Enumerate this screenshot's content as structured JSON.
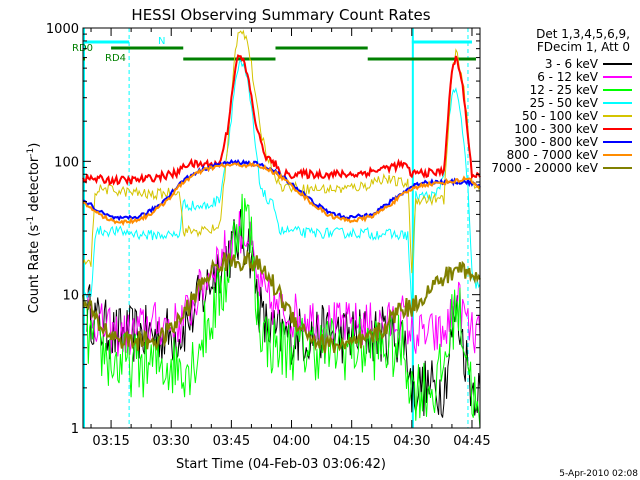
{
  "chart_data": {
    "type": "line",
    "title": "HESSI Observing Summary Count Rates",
    "xlabel": "Start Time (04-Feb-03 03:06:42)",
    "ylabel_main": "Count Rate (s",
    "ylabel_sup1": "-1",
    "ylabel_mid": " detector",
    "ylabel_sup2": "-1",
    "ylabel_end": ")",
    "yscale": "log",
    "ylim": [
      1,
      1000
    ],
    "xlim_minutes": [
      188,
      287
    ],
    "x_ticks": [
      {
        "t": 195,
        "label": "03:15"
      },
      {
        "t": 210,
        "label": "03:30"
      },
      {
        "t": 225,
        "label": "03:45"
      },
      {
        "t": 240,
        "label": "04:00"
      },
      {
        "t": 255,
        "label": "04:15"
      },
      {
        "t": 270,
        "label": "04:30"
      },
      {
        "t": 285,
        "label": "04:45"
      }
    ],
    "y_ticks": [
      {
        "v": 1,
        "label": "1"
      },
      {
        "v": 10,
        "label": "10"
      },
      {
        "v": 100,
        "label": "100"
      },
      {
        "v": 1000,
        "label": "1000"
      }
    ],
    "legend_header": [
      "Det 1,3,4,5,6,9,",
      "FDecim 1, Att 0"
    ],
    "timestamp": "5-Apr-2010 02:08",
    "night_bars": [
      [
        188,
        188.5
      ],
      [
        270,
        270.5
      ]
    ],
    "saa_lines": [
      199.5,
      284
    ],
    "flags": [
      {
        "label": "RD0",
        "color": "#008000",
        "segments": [
          [
            195,
            213
          ],
          [
            236,
            259
          ]
        ]
      },
      {
        "label": "RD4",
        "color": "#008000",
        "segments": [
          [
            188,
            188.5
          ],
          [
            213,
            236
          ],
          [
            259,
            286
          ]
        ]
      },
      {
        "label": "N",
        "color": "#00ffff",
        "segments": [
          [
            188,
            199.5
          ],
          [
            270,
            285
          ]
        ]
      }
    ],
    "series": [
      {
        "name": "3 - 6 keV",
        "color": "#000000",
        "x": [
          189,
          192,
          196,
          200,
          204,
          208,
          212,
          215,
          218,
          221,
          224,
          227,
          229,
          230,
          231,
          233,
          236,
          240,
          244,
          248,
          252,
          256,
          260,
          264,
          268,
          270,
          273,
          276,
          278,
          280,
          281,
          283,
          285,
          287
        ],
        "y": [
          8,
          6,
          5,
          5,
          5,
          5,
          5,
          7,
          10,
          15,
          20,
          27,
          25,
          20,
          12,
          6,
          5,
          5,
          5,
          5,
          5,
          5,
          5,
          5,
          5,
          2,
          2,
          2,
          2,
          5,
          8,
          4,
          2,
          2
        ]
      },
      {
        "name": "6 - 12 keV",
        "color": "#ff00ff",
        "x": [
          189,
          192,
          196,
          200,
          204,
          208,
          212,
          215,
          218,
          221,
          224,
          227,
          229,
          230,
          231,
          233,
          236,
          240,
          244,
          248,
          252,
          256,
          260,
          264,
          268,
          270,
          273,
          276,
          278,
          280,
          281,
          283,
          285,
          287
        ],
        "y": [
          8,
          6,
          5,
          5,
          6,
          6,
          6,
          8,
          12,
          18,
          22,
          30,
          28,
          22,
          14,
          10,
          8,
          7,
          7,
          6,
          6,
          6,
          6,
          6,
          7,
          5,
          5,
          5,
          5,
          7,
          10,
          7,
          5,
          5
        ]
      },
      {
        "name": "12 - 25 keV",
        "color": "#00ff00",
        "x": [
          189,
          192,
          196,
          200,
          204,
          208,
          212,
          215,
          218,
          221,
          224,
          227,
          229,
          230,
          231,
          233,
          236,
          240,
          244,
          248,
          252,
          256,
          260,
          264,
          268,
          270,
          273,
          276,
          278,
          280,
          281,
          283,
          285,
          287
        ],
        "y": [
          5,
          4,
          3,
          3,
          3,
          3,
          3,
          3,
          5,
          8,
          14,
          40,
          38,
          25,
          10,
          5,
          4,
          4,
          4,
          4,
          4,
          4,
          4,
          4,
          4,
          2,
          2,
          2,
          3,
          6,
          9,
          5,
          2,
          1
        ]
      },
      {
        "name": "25 - 50 keV",
        "color": "#00ffff",
        "x": [
          188,
          189,
          190,
          191,
          192,
          196,
          200,
          204,
          208,
          210,
          211,
          212,
          213,
          216,
          219,
          222,
          224,
          226,
          227,
          228,
          229,
          230,
          231,
          232,
          234,
          236,
          237,
          240,
          244,
          248,
          252,
          256,
          259,
          260,
          262,
          266,
          269,
          270,
          271,
          273,
          276,
          278,
          279,
          280,
          281,
          282,
          283,
          284,
          285,
          286,
          287
        ],
        "y": [
          10,
          10,
          10,
          28,
          30,
          30,
          29,
          28,
          28,
          28,
          28,
          28,
          48,
          46,
          46,
          52,
          120,
          400,
          540,
          500,
          400,
          250,
          130,
          70,
          50,
          45,
          30,
          30,
          29,
          29,
          29,
          29,
          29,
          28,
          29,
          28,
          28,
          8,
          55,
          55,
          55,
          80,
          200,
          300,
          340,
          240,
          140,
          60,
          14,
          12,
          12
        ]
      },
      {
        "name": "50 - 100 keV",
        "color": "#d4c400",
        "x": [
          188,
          189,
          190,
          191,
          193,
          197,
          201,
          205,
          209,
          212,
          213,
          216,
          219,
          222,
          224,
          226,
          227,
          228,
          229,
          230,
          231,
          232,
          233,
          234,
          236,
          237,
          240,
          244,
          248,
          252,
          256,
          259,
          260,
          263,
          266,
          269,
          270,
          271,
          273,
          276,
          278,
          279,
          280,
          281,
          282,
          283,
          284,
          285,
          286,
          287
        ],
        "y": [
          17,
          17,
          17,
          60,
          62,
          60,
          58,
          56,
          58,
          62,
          30,
          30,
          30,
          32,
          120,
          700,
          1000,
          950,
          800,
          520,
          300,
          190,
          140,
          110,
          80,
          65,
          64,
          62,
          62,
          62,
          64,
          66,
          70,
          75,
          70,
          68,
          15,
          52,
          52,
          52,
          52,
          150,
          450,
          650,
          520,
          350,
          170,
          70,
          66,
          66
        ]
      },
      {
        "name": "100 - 300 keV",
        "color": "#ff0000",
        "x": [
          188,
          190,
          193,
          196,
          200,
          204,
          208,
          212,
          213,
          216,
          219,
          222,
          224,
          226,
          227,
          228,
          229,
          230,
          231,
          232,
          233,
          234,
          236,
          237,
          240,
          244,
          248,
          252,
          256,
          260,
          264,
          268,
          270,
          271,
          273,
          276,
          278,
          279,
          280,
          281,
          282,
          283,
          284,
          285,
          286,
          287
        ],
        "y": [
          75,
          74,
          73,
          72,
          72,
          74,
          78,
          82,
          95,
          95,
          95,
          95,
          170,
          520,
          620,
          560,
          450,
          300,
          200,
          150,
          120,
          105,
          95,
          80,
          80,
          80,
          80,
          80,
          80,
          84,
          90,
          95,
          80,
          82,
          82,
          82,
          85,
          210,
          480,
          600,
          480,
          300,
          160,
          80,
          76,
          76
        ]
      },
      {
        "name": "300 - 800 keV",
        "color": "#0000ff",
        "x": [
          188,
          190,
          192,
          195,
          198,
          201,
          204,
          207,
          210,
          213,
          216,
          219,
          222,
          225,
          228,
          231,
          234,
          237,
          240,
          243,
          246,
          249,
          252,
          255,
          258,
          261,
          264,
          267,
          270,
          273,
          276,
          279,
          282,
          284,
          285,
          286,
          287
        ],
        "y": [
          50,
          47,
          42,
          38,
          37,
          38,
          41,
          47,
          58,
          72,
          82,
          90,
          95,
          98,
          98,
          96,
          90,
          80,
          68,
          57,
          48,
          42,
          39,
          38,
          39,
          42,
          48,
          56,
          65,
          70,
          70,
          70,
          70,
          70,
          69,
          66,
          64
        ]
      },
      {
        "name": "800 - 7000 keV",
        "color": "#ff8c00",
        "x": [
          188,
          190,
          192,
          195,
          198,
          201,
          204,
          207,
          210,
          213,
          216,
          219,
          222,
          225,
          228,
          231,
          234,
          237,
          240,
          243,
          246,
          249,
          252,
          255,
          258,
          261,
          264,
          267,
          270,
          273,
          276,
          279,
          282,
          284,
          285,
          286,
          287
        ],
        "y": [
          48,
          45,
          40,
          36,
          35,
          36,
          39,
          45,
          55,
          70,
          80,
          88,
          92,
          94,
          94,
          93,
          88,
          78,
          66,
          55,
          46,
          40,
          37,
          36,
          37,
          40,
          46,
          54,
          62,
          67,
          68,
          70,
          72,
          75,
          72,
          65,
          63
        ]
      },
      {
        "name": "7000 - 20000 keV",
        "color": "#808000",
        "x": [
          188,
          190,
          192,
          195,
          198,
          201,
          204,
          207,
          210,
          213,
          216,
          219,
          222,
          225,
          228,
          231,
          234,
          237,
          240,
          243,
          246,
          249,
          252,
          255,
          258,
          261,
          264,
          267,
          270,
          273,
          276,
          279,
          282,
          284,
          285,
          286,
          287
        ],
        "y": [
          9,
          7.5,
          6,
          5,
          4.5,
          4.5,
          4.5,
          4.6,
          5.5,
          7,
          10,
          14,
          17,
          18,
          18,
          17,
          14,
          10,
          7,
          5.5,
          4.5,
          4.2,
          4.2,
          4.2,
          4.4,
          5,
          6,
          8,
          8,
          10,
          12,
          14,
          16,
          15,
          14,
          13,
          13
        ]
      }
    ]
  }
}
